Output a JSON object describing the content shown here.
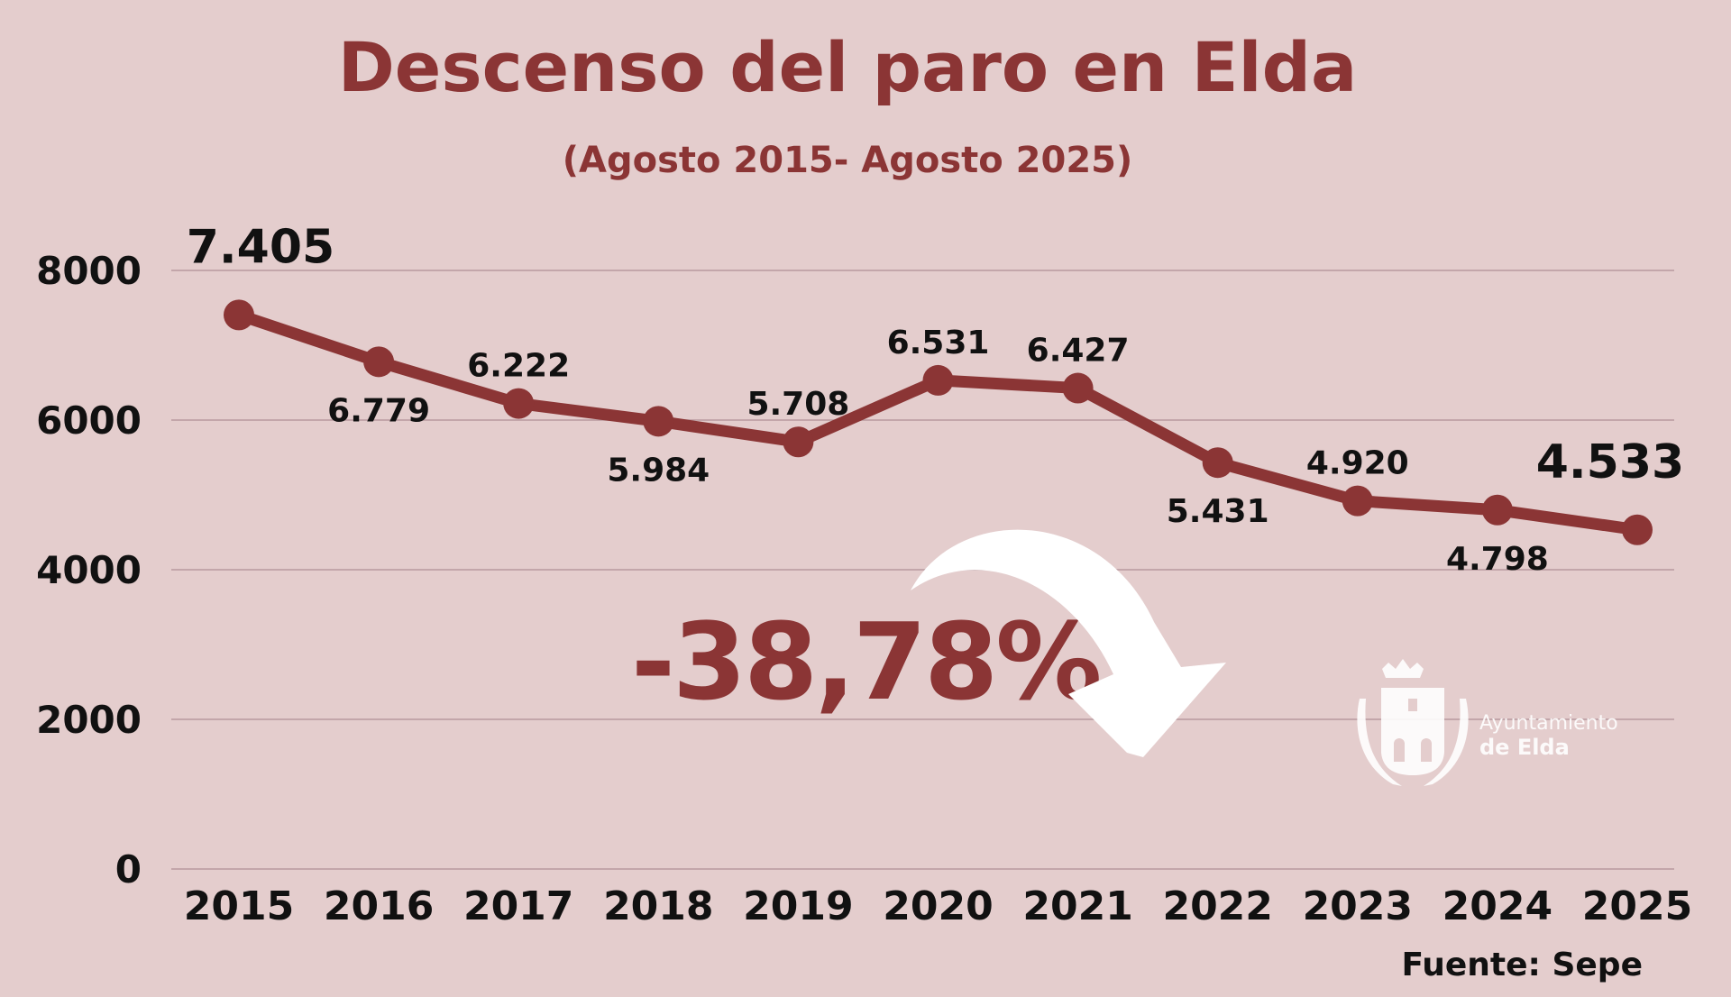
{
  "chart_data": {
    "type": "line",
    "title": "Descenso del paro en Elda",
    "subtitle": "(Agosto 2015- Agosto 2025)",
    "categories": [
      "2015",
      "2016",
      "2017",
      "2018",
      "2019",
      "2020",
      "2021",
      "2022",
      "2023",
      "2024",
      "2025"
    ],
    "values": [
      7405,
      6779,
      6222,
      5984,
      5708,
      6531,
      6427,
      5431,
      4920,
      4798,
      4533
    ],
    "data_labels": [
      "7.405",
      "6.779",
      "6.222",
      "5.984",
      "5.708",
      "6.531",
      "6.427",
      "5.431",
      "4.920",
      "4.798",
      "4.533"
    ],
    "label_placement": [
      "above",
      "below",
      "above",
      "below",
      "above",
      "above",
      "above",
      "below",
      "above",
      "below",
      "above"
    ],
    "yticks": [
      0,
      2000,
      4000,
      6000,
      8000
    ],
    "ylim": [
      0,
      8000
    ],
    "grid": true,
    "xlabel": "",
    "ylabel": "",
    "annotation": "-38,78%",
    "source": "Fuente: Sepe",
    "colors": {
      "line": "#8b3535",
      "background": "#e4cdcd",
      "grid": "#b89a9e",
      "text": "#111111",
      "arrow": "#ffffff"
    }
  },
  "logo": {
    "line1": "Ayuntamiento",
    "line2": "de Elda",
    "icon": "coat-of-arms-icon"
  }
}
